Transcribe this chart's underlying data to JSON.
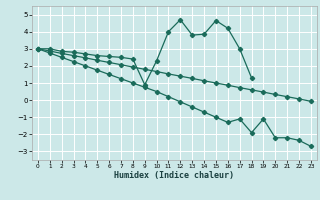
{
  "title": "",
  "xlabel": "Humidex (Indice chaleur)",
  "bg_color": "#cce8e8",
  "line_color": "#1a6b5a",
  "grid_color": "#ffffff",
  "grid_minor_color": "#ddeedd",
  "xlim": [
    -0.5,
    23.5
  ],
  "ylim": [
    -3.5,
    5.5
  ],
  "yticks": [
    -3,
    -2,
    -1,
    0,
    1,
    2,
    3,
    4,
    5
  ],
  "xticks": [
    0,
    1,
    2,
    3,
    4,
    5,
    6,
    7,
    8,
    9,
    10,
    11,
    12,
    13,
    14,
    15,
    16,
    17,
    18,
    19,
    20,
    21,
    22,
    23
  ],
  "line1_x": [
    0,
    1,
    2,
    3,
    4,
    5,
    6,
    7,
    8,
    9,
    10,
    11,
    12,
    13,
    14,
    15,
    16,
    17,
    18
  ],
  "line1_y": [
    3.0,
    3.0,
    2.85,
    2.8,
    2.7,
    2.6,
    2.55,
    2.5,
    2.4,
    0.9,
    2.3,
    4.0,
    4.7,
    3.8,
    3.85,
    4.65,
    4.2,
    3.0,
    1.3
  ],
  "line2_x": [
    0,
    1,
    2,
    3,
    4,
    5,
    6,
    7,
    8,
    9,
    10,
    11,
    12,
    13,
    14,
    15,
    16,
    17,
    18,
    19,
    20,
    21,
    22,
    23
  ],
  "line2_y": [
    3.0,
    2.87,
    2.73,
    2.6,
    2.47,
    2.33,
    2.2,
    2.07,
    1.93,
    1.8,
    1.67,
    1.53,
    1.4,
    1.27,
    1.13,
    1.0,
    0.87,
    0.73,
    0.6,
    0.47,
    0.33,
    0.2,
    0.07,
    -0.07
  ],
  "line3_x": [
    0,
    1,
    2,
    3,
    4,
    5,
    6,
    7,
    8,
    9,
    10,
    11,
    12,
    13,
    14,
    15,
    16,
    17,
    18,
    19,
    20,
    21,
    22,
    23
  ],
  "line3_y": [
    3.0,
    2.75,
    2.5,
    2.25,
    2.0,
    1.75,
    1.5,
    1.25,
    1.0,
    0.75,
    0.5,
    0.2,
    -0.1,
    -0.4,
    -0.7,
    -1.0,
    -1.3,
    -1.1,
    -1.9,
    -1.1,
    -2.2,
    -2.2,
    -2.35,
    -2.7
  ]
}
